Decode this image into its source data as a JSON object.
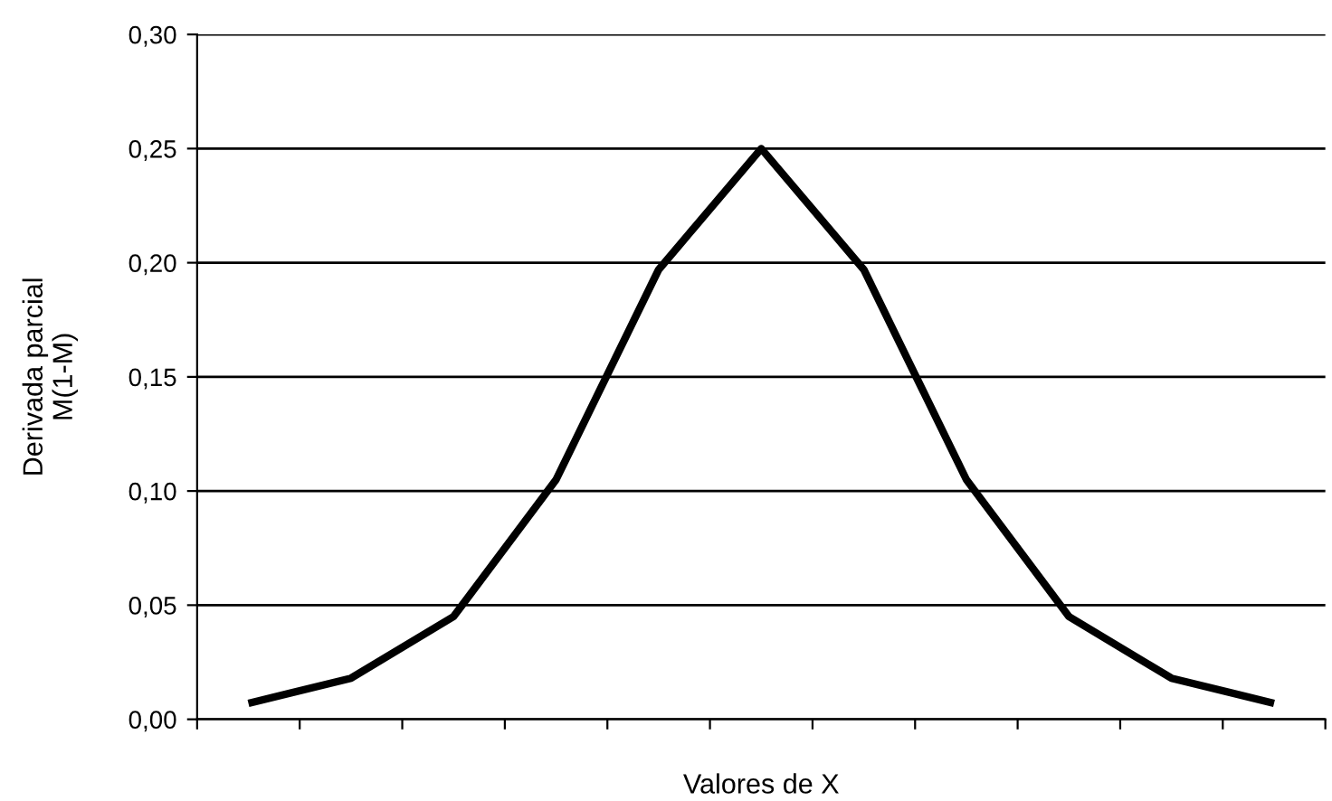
{
  "chart_data": {
    "type": "line",
    "xlabel": "Valores de X",
    "ylabel": "Derivada parcial\nM(1-M)",
    "categories": [
      null,
      null,
      null,
      null,
      null,
      null,
      null,
      null,
      null,
      null,
      null
    ],
    "series": [
      {
        "color": "#000000",
        "values": [
          0.007,
          0.018,
          0.045,
          0.105,
          0.197,
          0.25,
          0.197,
          0.105,
          0.045,
          0.018,
          0.007
        ]
      }
    ],
    "ylim": [
      0,
      0.3
    ],
    "yticks": [
      {
        "value": 0,
        "label": "0,00"
      },
      {
        "value": 0.05,
        "label": "0,05"
      },
      {
        "value": 0.1,
        "label": "0,10"
      },
      {
        "value": 0.15,
        "label": "0,15"
      },
      {
        "value": 0.2,
        "label": "0,20"
      },
      {
        "value": 0.25,
        "label": "0,25"
      },
      {
        "value": 0.3,
        "label": "0,30"
      }
    ],
    "grid": "y",
    "marker": "none",
    "line_style": "solid"
  }
}
